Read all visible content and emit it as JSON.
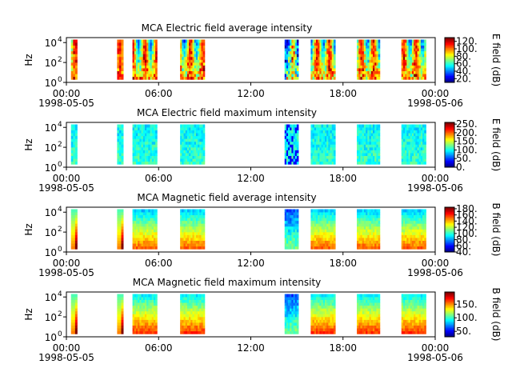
{
  "chart_data": [
    {
      "type": "heatmap",
      "title": "MCA  Electric field average intensity",
      "ylabel": "Hz",
      "y_ticks": [
        {
          "base": "10",
          "exp": "0"
        },
        {
          "base": "10",
          "exp": "2"
        },
        {
          "base": "10",
          "exp": "4"
        }
      ],
      "ylim_log10": [
        0,
        4.5
      ],
      "x_ticks": [
        "00:00",
        "06:00",
        "12:00",
        "18:00",
        "00:00"
      ],
      "x_dates": {
        "start": "1998-05-05",
        "end": "1998-05-06"
      },
      "colorbar": {
        "label": "E field (dB)",
        "ticks": [
          "20.",
          "40.",
          "60.",
          "80.",
          "100.",
          "120."
        ],
        "tick_values": [
          20,
          40,
          60,
          80,
          100,
          120
        ],
        "range": [
          10,
          130
        ]
      },
      "data_segments_hours": [
        [
          0.3,
          0.7
        ],
        [
          3.3,
          3.7
        ],
        [
          4.3,
          5.9
        ],
        [
          7.4,
          9.0
        ],
        [
          14.2,
          15.1
        ],
        [
          15.9,
          17.5
        ],
        [
          18.9,
          20.4
        ],
        [
          21.8,
          23.4
        ]
      ],
      "freq_max_log10": 4.3,
      "freq_min_log10": 0.3
    },
    {
      "type": "heatmap",
      "title": "MCA  Electric field maximum intensity",
      "ylabel": "Hz",
      "y_ticks": [
        {
          "base": "10",
          "exp": "0"
        },
        {
          "base": "10",
          "exp": "2"
        },
        {
          "base": "10",
          "exp": "4"
        }
      ],
      "ylim_log10": [
        0,
        4.5
      ],
      "x_ticks": [
        "00:00",
        "06:00",
        "12:00",
        "18:00",
        "00:00"
      ],
      "x_dates": {
        "start": "1998-05-05",
        "end": "1998-05-06"
      },
      "colorbar": {
        "label": "E field (dB)",
        "ticks": [
          "0.",
          "50.",
          "100.",
          "150.",
          "200.",
          "250."
        ],
        "tick_values": [
          0,
          50,
          100,
          150,
          200,
          250
        ],
        "range": [
          0,
          260
        ]
      },
      "data_segments_hours": [
        [
          0.3,
          0.7
        ],
        [
          3.3,
          3.7
        ],
        [
          4.3,
          5.9
        ],
        [
          7.4,
          9.0
        ],
        [
          14.2,
          15.1
        ],
        [
          15.9,
          17.5
        ],
        [
          18.9,
          20.4
        ],
        [
          21.8,
          23.4
        ]
      ],
      "freq_max_log10": 4.3,
      "freq_min_log10": 0.3
    },
    {
      "type": "heatmap",
      "title": "MCA  Magnetic field average intensity",
      "ylabel": "Hz",
      "y_ticks": [
        {
          "base": "10",
          "exp": "0"
        },
        {
          "base": "10",
          "exp": "2"
        },
        {
          "base": "10",
          "exp": "4"
        }
      ],
      "ylim_log10": [
        0,
        4.5
      ],
      "x_ticks": [
        "00:00",
        "06:00",
        "12:00",
        "18:00",
        "00:00"
      ],
      "x_dates": {
        "start": "1998-05-05",
        "end": "1998-05-06"
      },
      "colorbar": {
        "label": "B field (dB)",
        "ticks": [
          "40.",
          "60.",
          "80.",
          "100.",
          "120.",
          "140.",
          "160.",
          "180."
        ],
        "tick_values": [
          40,
          60,
          80,
          100,
          120,
          140,
          160,
          180
        ],
        "range": [
          40,
          185
        ]
      },
      "data_segments_hours": [
        [
          0.3,
          0.7
        ],
        [
          3.3,
          3.7
        ],
        [
          4.3,
          5.9
        ],
        [
          7.4,
          9.0
        ],
        [
          14.2,
          15.1
        ],
        [
          15.9,
          17.5
        ],
        [
          18.9,
          20.4
        ],
        [
          21.8,
          23.4
        ]
      ],
      "freq_max_log10": 4.3,
      "freq_min_log10": 0.3
    },
    {
      "type": "heatmap",
      "title": "MCA  Magnetic field maximum intensity",
      "ylabel": "Hz",
      "y_ticks": [
        {
          "base": "10",
          "exp": "0"
        },
        {
          "base": "10",
          "exp": "2"
        },
        {
          "base": "10",
          "exp": "4"
        }
      ],
      "ylim_log10": [
        0,
        4.5
      ],
      "x_ticks": [
        "00:00",
        "06:00",
        "12:00",
        "18:00",
        "00:00"
      ],
      "x_dates": {
        "start": "1998-05-05",
        "end": "1998-05-06"
      },
      "colorbar": {
        "label": "B field (dB)",
        "ticks": [
          "50.",
          "100.",
          "150."
        ],
        "tick_values": [
          50,
          100,
          150
        ],
        "range": [
          30,
          195
        ]
      },
      "data_segments_hours": [
        [
          0.3,
          0.7
        ],
        [
          3.3,
          3.7
        ],
        [
          4.3,
          5.9
        ],
        [
          7.4,
          9.0
        ],
        [
          14.2,
          15.1
        ],
        [
          15.9,
          17.5
        ],
        [
          18.9,
          20.4
        ],
        [
          21.8,
          23.4
        ]
      ],
      "freq_max_log10": 4.3,
      "freq_min_log10": 0.3
    }
  ]
}
